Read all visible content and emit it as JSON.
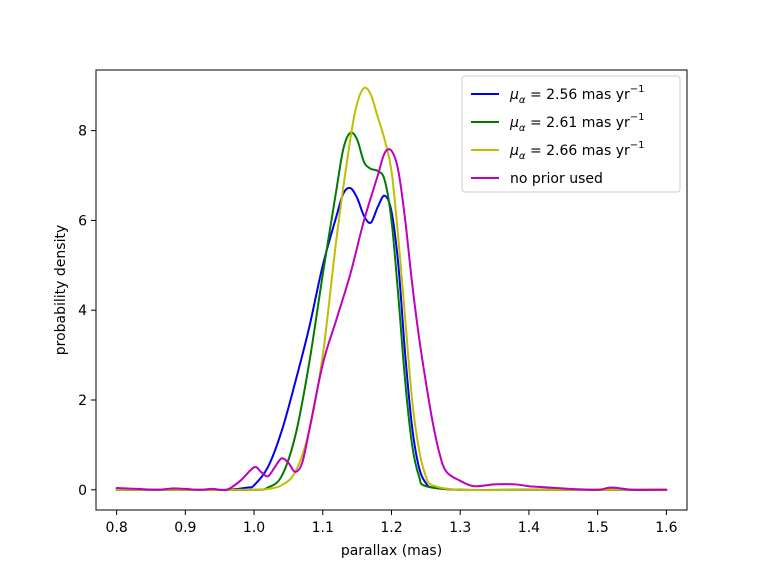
{
  "chart_data": {
    "type": "line",
    "title": "",
    "xlabel": "parallax (mas)",
    "ylabel": "probability density",
    "xlim": [
      0.77,
      1.63
    ],
    "ylim": [
      -0.45,
      9.35
    ],
    "xticks": [
      0.8,
      0.9,
      1.0,
      1.1,
      1.2,
      1.3,
      1.4,
      1.5,
      1.6
    ],
    "xtick_labels": [
      "0.8",
      "0.9",
      "1.0",
      "1.1",
      "1.2",
      "1.3",
      "1.4",
      "1.5",
      "1.6"
    ],
    "yticks": [
      0,
      2,
      4,
      6,
      8
    ],
    "ytick_labels": [
      "0",
      "2",
      "4",
      "6",
      "8"
    ],
    "grid": false,
    "legend_position": "top-right",
    "series": [
      {
        "name": "μα = 2.56 mas yr⁻¹",
        "legend_prefix": "μ",
        "legend_sub": "α",
        "legend_value": " = 2.56 mas yr",
        "legend_sup": "−1",
        "color": "#0000ee",
        "x": [
          0.8,
          0.9,
          0.96,
          0.99,
          1.0,
          1.02,
          1.04,
          1.06,
          1.08,
          1.1,
          1.12,
          1.13,
          1.14,
          1.15,
          1.16,
          1.17,
          1.18,
          1.19,
          1.2,
          1.21,
          1.22,
          1.23,
          1.24,
          1.25,
          1.26,
          1.3,
          1.4,
          1.5,
          1.6
        ],
        "y": [
          0.0,
          0.0,
          0.0,
          0.05,
          0.1,
          0.5,
          1.3,
          2.4,
          3.6,
          5.0,
          6.1,
          6.6,
          6.72,
          6.5,
          6.1,
          5.95,
          6.3,
          6.55,
          6.2,
          5.0,
          3.0,
          1.4,
          0.5,
          0.15,
          0.05,
          0.0,
          0.0,
          0.0,
          0.0
        ]
      },
      {
        "name": "μα = 2.61 mas yr⁻¹",
        "legend_prefix": "μ",
        "legend_sub": "α",
        "legend_value": " = 2.61 mas yr",
        "legend_sup": "−1",
        "color": "#007a00",
        "x": [
          0.8,
          0.9,
          1.0,
          1.02,
          1.04,
          1.06,
          1.08,
          1.1,
          1.12,
          1.13,
          1.14,
          1.15,
          1.16,
          1.17,
          1.18,
          1.19,
          1.2,
          1.21,
          1.22,
          1.23,
          1.24,
          1.25,
          1.3,
          1.4,
          1.5,
          1.6
        ],
        "y": [
          0.0,
          0.0,
          0.0,
          0.05,
          0.3,
          1.2,
          2.8,
          4.8,
          6.7,
          7.6,
          7.95,
          7.8,
          7.3,
          7.15,
          7.1,
          6.9,
          6.0,
          4.3,
          2.4,
          1.0,
          0.3,
          0.08,
          0.0,
          0.0,
          0.0,
          0.0
        ]
      },
      {
        "name": "μα = 2.66 mas yr⁻¹",
        "legend_prefix": "μ",
        "legend_sub": "α",
        "legend_value": " = 2.66 mas yr",
        "legend_sup": "−1",
        "color": "#bfbf00",
        "x": [
          0.8,
          0.9,
          1.0,
          1.02,
          1.04,
          1.06,
          1.08,
          1.1,
          1.12,
          1.14,
          1.15,
          1.16,
          1.17,
          1.18,
          1.19,
          1.2,
          1.21,
          1.22,
          1.23,
          1.24,
          1.25,
          1.26,
          1.3,
          1.4,
          1.5,
          1.6
        ],
        "y": [
          0.0,
          0.0,
          0.0,
          0.02,
          0.1,
          0.4,
          1.3,
          3.0,
          5.6,
          7.8,
          8.6,
          8.95,
          8.8,
          8.3,
          7.8,
          7.1,
          5.6,
          3.8,
          2.0,
          0.9,
          0.3,
          0.1,
          0.0,
          0.0,
          0.0,
          0.0
        ]
      },
      {
        "name": "no prior used",
        "color": "#bf00bf",
        "x": [
          0.8,
          0.83,
          0.86,
          0.88,
          0.9,
          0.92,
          0.94,
          0.96,
          0.98,
          1.0,
          1.01,
          1.02,
          1.03,
          1.04,
          1.05,
          1.06,
          1.07,
          1.08,
          1.1,
          1.12,
          1.14,
          1.16,
          1.18,
          1.19,
          1.2,
          1.21,
          1.22,
          1.23,
          1.24,
          1.25,
          1.26,
          1.27,
          1.28,
          1.3,
          1.32,
          1.35,
          1.38,
          1.4,
          1.43,
          1.46,
          1.5,
          1.52,
          1.55,
          1.58,
          1.6
        ],
        "y": [
          0.04,
          0.02,
          0.0,
          0.03,
          0.02,
          0.0,
          0.02,
          0.0,
          0.2,
          0.5,
          0.4,
          0.3,
          0.5,
          0.7,
          0.6,
          0.4,
          0.6,
          1.3,
          2.8,
          3.8,
          4.8,
          6.0,
          7.0,
          7.5,
          7.55,
          7.1,
          6.0,
          4.6,
          3.4,
          2.4,
          1.5,
          0.8,
          0.4,
          0.2,
          0.08,
          0.12,
          0.12,
          0.08,
          0.05,
          0.02,
          0.0,
          0.05,
          0.0,
          0.0,
          0.0
        ]
      }
    ]
  }
}
